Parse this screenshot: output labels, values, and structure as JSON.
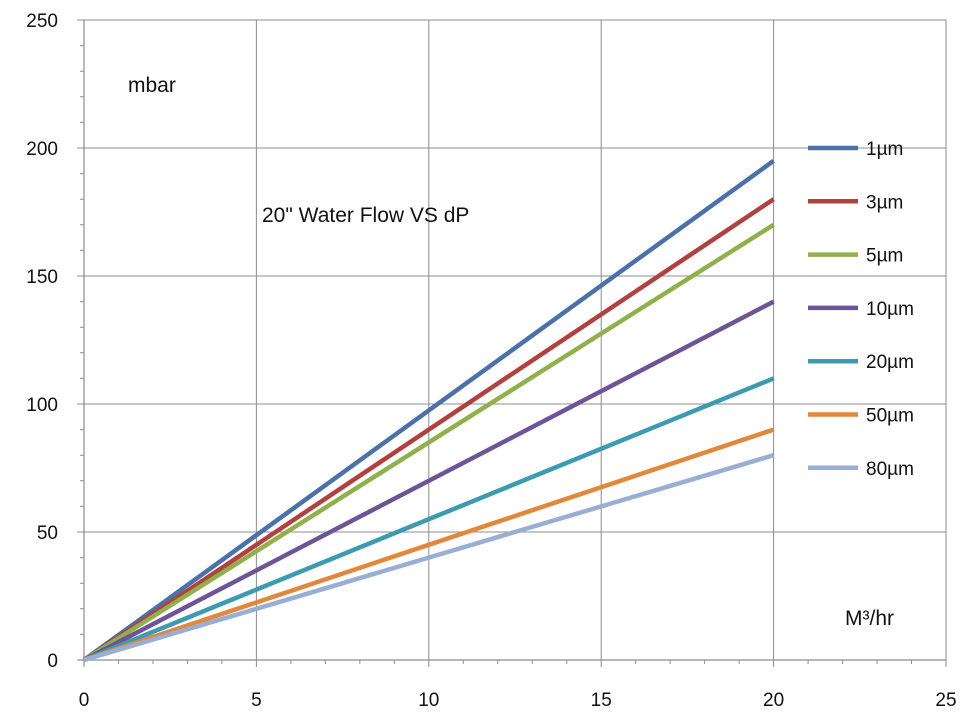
{
  "chart_data": {
    "type": "line",
    "title": "20\" Water Flow VS dP",
    "ylabel": "mbar",
    "xlabel": "M³/hr",
    "xlim": [
      0,
      25
    ],
    "ylim": [
      0,
      250
    ],
    "x_ticks": [
      0,
      5,
      10,
      15,
      20,
      25
    ],
    "y_ticks": [
      0,
      50,
      100,
      150,
      200,
      250
    ],
    "x_minor_step": 1,
    "y_minor_step": 10,
    "grid": true,
    "legend_position": "right",
    "x": [
      0,
      20
    ],
    "series": [
      {
        "name": "1µm",
        "values": [
          0,
          195
        ],
        "color": "#4a72a8"
      },
      {
        "name": "3µm",
        "values": [
          0,
          180
        ],
        "color": "#b0413e"
      },
      {
        "name": "5µm",
        "values": [
          0,
          170
        ],
        "color": "#8fb04a"
      },
      {
        "name": "10µm",
        "values": [
          0,
          140
        ],
        "color": "#6e5496"
      },
      {
        "name": "20µm",
        "values": [
          0,
          110
        ],
        "color": "#3c9bb0"
      },
      {
        "name": "50µm",
        "values": [
          0,
          90
        ],
        "color": "#e0883c"
      },
      {
        "name": "80µm",
        "values": [
          0,
          80
        ],
        "color": "#98aed4"
      }
    ]
  }
}
